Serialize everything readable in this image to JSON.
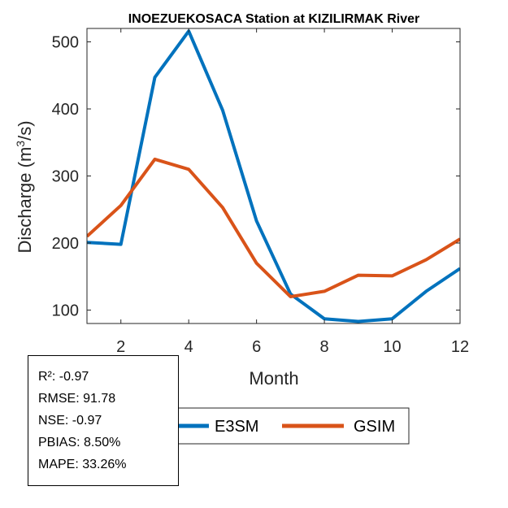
{
  "chart_data": {
    "type": "line",
    "title": "INOEZUEKOSACA  Station at  KIZILIRMAK  River",
    "xlabel": "Month",
    "ylabel": "Discharge (m³/s)",
    "ylabel_parts": {
      "pre": "Discharge (m",
      "sup": "3",
      "post": "/s)"
    },
    "xlim": [
      1,
      12
    ],
    "ylim": [
      80,
      520
    ],
    "xticks": [
      2,
      4,
      6,
      8,
      10,
      12
    ],
    "yticks": [
      100,
      200,
      300,
      400,
      500
    ],
    "grid": false,
    "legend_position": "bottom",
    "x": [
      1,
      2,
      3,
      4,
      5,
      6,
      7,
      8,
      9,
      10,
      11,
      12
    ],
    "series": [
      {
        "name": "E3SM",
        "color": "#0072BD",
        "values": [
          201,
          198,
          447,
          516,
          398,
          233,
          124,
          87,
          83,
          87,
          128,
          162
        ]
      },
      {
        "name": "GSIM",
        "color": "#D95319",
        "values": [
          210,
          256,
          325,
          310,
          253,
          170,
          120,
          128,
          152,
          151,
          175,
          206
        ]
      }
    ]
  },
  "stats": {
    "r2": "R²: -0.97",
    "rmse": "RMSE: 91.78",
    "nse": "NSE: -0.97",
    "pbias": "PBIAS: 8.50%",
    "mape": "MAPE: 33.26%"
  }
}
